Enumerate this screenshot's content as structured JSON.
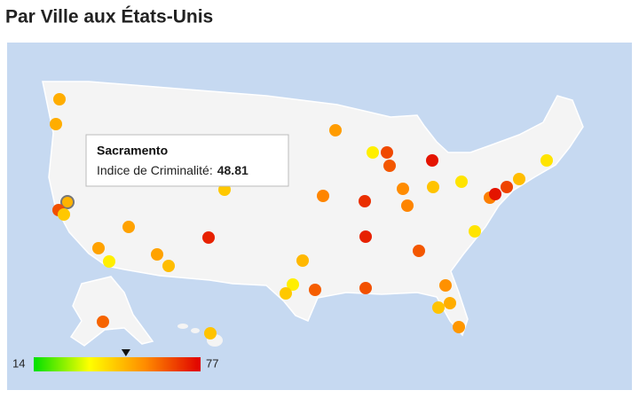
{
  "title": "Par Ville aux États-Unis",
  "tooltip": {
    "city": "Sacramento",
    "label": "Indice de Criminalité:",
    "value": 48.81
  },
  "legend": {
    "min": 14,
    "max": 77,
    "colors": [
      "#00e000",
      "#ffff00",
      "#ff8c00",
      "#e00000"
    ]
  },
  "cities": [
    {
      "value": 50
    },
    {
      "value": 50
    },
    {
      "value": 48.81
    },
    {
      "value": 65
    },
    {
      "value": 45
    },
    {
      "value": 52
    },
    {
      "value": 52
    },
    {
      "value": 38
    },
    {
      "value": 52
    },
    {
      "value": 47
    },
    {
      "value": 72
    },
    {
      "value": 45
    },
    {
      "value": 53
    },
    {
      "value": 38
    },
    {
      "value": 66
    },
    {
      "value": 64
    },
    {
      "value": 74
    },
    {
      "value": 57
    },
    {
      "value": 70
    },
    {
      "value": 56
    },
    {
      "value": 57
    },
    {
      "value": 46
    },
    {
      "value": 40
    },
    {
      "value": 72
    },
    {
      "value": 64
    },
    {
      "value": 40
    },
    {
      "value": 58
    },
    {
      "value": 74
    },
    {
      "value": 67
    },
    {
      "value": 47
    },
    {
      "value": 40
    },
    {
      "value": 48
    },
    {
      "value": 38
    },
    {
      "value": 45
    },
    {
      "value": 63
    },
    {
      "value": 65
    },
    {
      "value": 55
    },
    {
      "value": 46
    },
    {
      "value": 50
    },
    {
      "value": 54
    },
    {
      "value": 62
    },
    {
      "value": 46
    }
  ]
}
